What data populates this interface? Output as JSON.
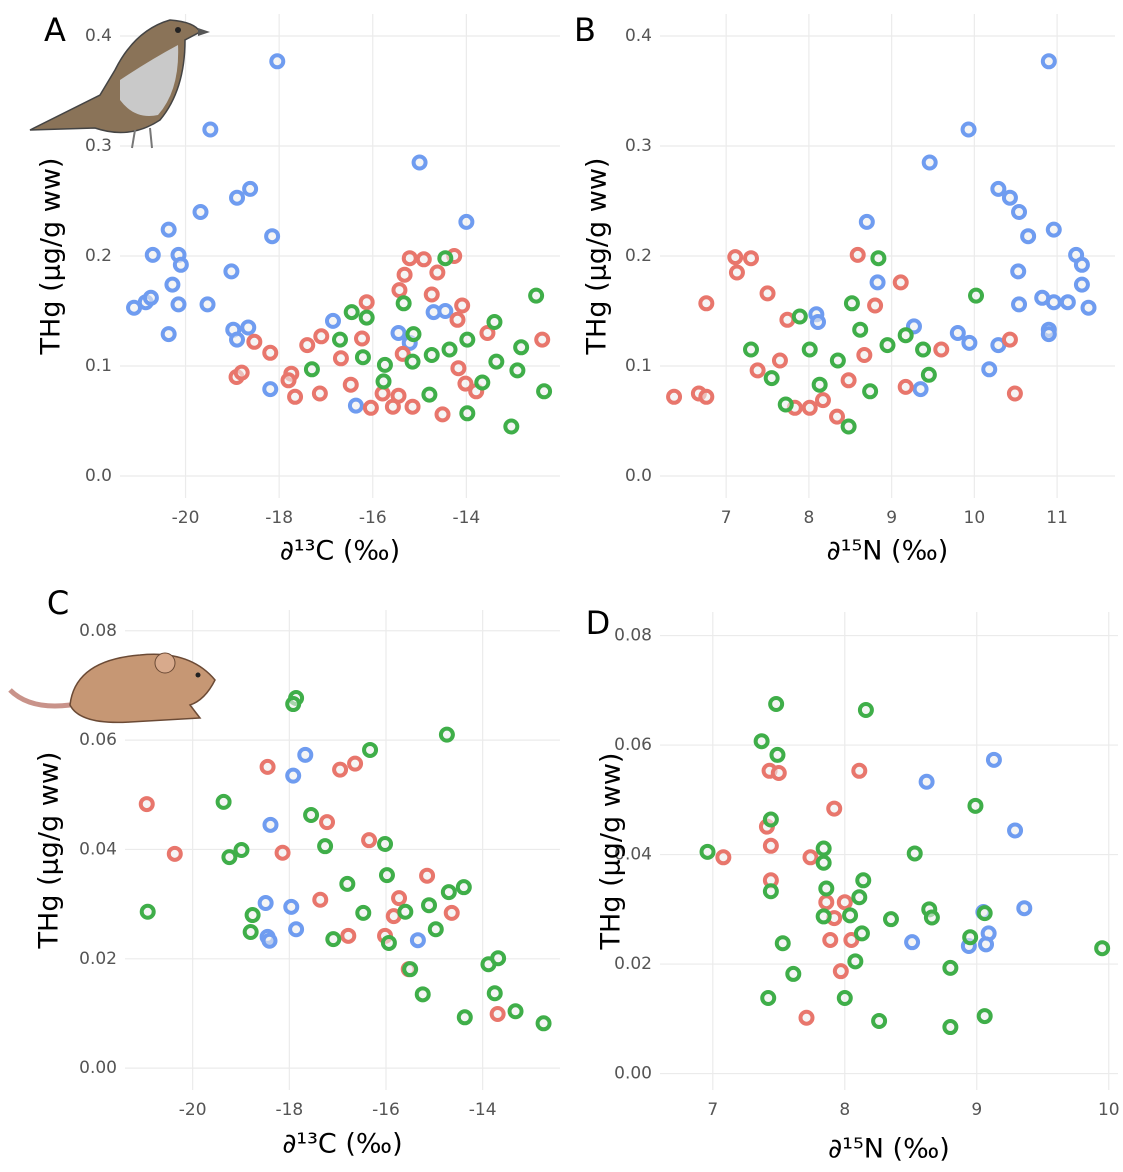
{
  "chart_data": [
    {
      "type": "scatter",
      "label": "A",
      "xlabel": "∂¹³C (‰)",
      "ylabel": "THg (μg/g ww)",
      "xlim": [
        -21.4,
        -12.0
      ],
      "ylim": [
        -0.02,
        0.42
      ],
      "xticks": [
        -20,
        -18,
        -16,
        -14
      ],
      "yticks": [
        {
          "value": 0,
          "label": "0.0"
        },
        0.1,
        0.2,
        0.3,
        0.4
      ],
      "grid": true,
      "series": [
        {
          "color": "#6f9cf0",
          "x": [
            -21.1,
            -20.85,
            -20.74,
            -20.7,
            -20.36,
            -20.36,
            -20.28,
            -20.15,
            -20.1,
            -20.15,
            -19.68,
            -19.53,
            -19.47,
            -19.02,
            -18.9,
            -18.62,
            -18.98,
            -18.9,
            -18.66,
            -18.19,
            -18.15,
            -18.04,
            -16.85,
            -16.36,
            -15.0,
            -15.45,
            -15.21,
            -14.7,
            -14.45,
            -14.0
          ],
          "y": [
            0.153,
            0.158,
            0.162,
            0.201,
            0.224,
            0.129,
            0.174,
            0.201,
            0.192,
            0.156,
            0.24,
            0.156,
            0.315,
            0.186,
            0.253,
            0.261,
            0.133,
            0.124,
            0.135,
            0.079,
            0.218,
            0.377,
            0.141,
            0.064,
            0.285,
            0.13,
            0.121,
            0.149,
            0.15,
            0.231
          ]
        },
        {
          "color": "#e8766c",
          "x": [
            -18.53,
            -18.91,
            -18.8,
            -18.19,
            -17.74,
            -17.8,
            -17.66,
            -17.4,
            -17.1,
            -17.13,
            -16.68,
            -16.47,
            -16.23,
            -16.13,
            -16.04,
            -15.79,
            -15.57,
            -15.45,
            -15.36,
            -15.32,
            -15.21,
            -15.15,
            -14.91,
            -14.74,
            -14.62,
            -14.51,
            -14.26,
            -14.19,
            -14.17,
            -14.09,
            -14.02,
            -13.79,
            -13.55,
            -12.38,
            -15.43
          ],
          "y": [
            0.122,
            0.09,
            0.094,
            0.112,
            0.093,
            0.087,
            0.072,
            0.119,
            0.127,
            0.075,
            0.107,
            0.083,
            0.125,
            0.158,
            0.062,
            0.075,
            0.063,
            0.073,
            0.111,
            0.183,
            0.198,
            0.063,
            0.197,
            0.165,
            0.185,
            0.056,
            0.2,
            0.142,
            0.098,
            0.155,
            0.084,
            0.077,
            0.13,
            0.124,
            0.169
          ]
        },
        {
          "color": "#3fae49",
          "x": [
            -17.3,
            -16.7,
            -16.45,
            -16.21,
            -16.13,
            -15.77,
            -15.34,
            -15.13,
            -15.15,
            -14.79,
            -14.74,
            -14.45,
            -14.36,
            -13.98,
            -13.98,
            -13.66,
            -13.4,
            -13.04,
            -12.91,
            -12.83,
            -12.51,
            -12.34,
            -13.36,
            -15.74
          ],
          "y": [
            0.097,
            0.124,
            0.149,
            0.108,
            0.144,
            0.086,
            0.157,
            0.129,
            0.104,
            0.074,
            0.11,
            0.198,
            0.115,
            0.124,
            0.057,
            0.085,
            0.14,
            0.045,
            0.096,
            0.117,
            0.164,
            0.077,
            0.104,
            0.101
          ]
        }
      ]
    },
    {
      "type": "scatter",
      "label": "B",
      "xlabel": "∂¹⁵N (‰)",
      "ylabel": "THg (μg/g ww)",
      "xlim": [
        6.2,
        11.7
      ],
      "ylim": [
        -0.02,
        0.42
      ],
      "xticks": [
        7,
        8,
        9,
        10,
        11
      ],
      "yticks": [
        {
          "value": 0,
          "label": "0.0"
        },
        0.1,
        0.2,
        0.3,
        0.4
      ],
      "grid": true,
      "series": [
        {
          "color": "#6f9cf0",
          "x": [
            10.9,
            9.93,
            9.46,
            10.29,
            10.43,
            10.54,
            10.65,
            10.96,
            11.23,
            11.3,
            10.53,
            11.3,
            10.54,
            10.82,
            10.96,
            11.13,
            11.38,
            10.9,
            10.9,
            9.94,
            10.29,
            10.18,
            8.7,
            8.83,
            9.35,
            9.8,
            9.27,
            8.09,
            8.11
          ],
          "y": [
            0.377,
            0.315,
            0.285,
            0.261,
            0.253,
            0.24,
            0.218,
            0.224,
            0.201,
            0.192,
            0.186,
            0.174,
            0.156,
            0.162,
            0.158,
            0.158,
            0.153,
            0.133,
            0.129,
            0.121,
            0.119,
            0.097,
            0.231,
            0.176,
            0.079,
            0.13,
            0.136,
            0.147,
            0.14
          ]
        },
        {
          "color": "#e8766c",
          "x": [
            6.37,
            6.76,
            7.11,
            7.13,
            7.3,
            6.67,
            6.76,
            7.5,
            7.38,
            7.74,
            8.59,
            8.8,
            9.11,
            9.6,
            10.43,
            10.49,
            8.34,
            8.01,
            7.83,
            8.17,
            8.67,
            8.48,
            9.17,
            7.65
          ],
          "y": [
            0.072,
            0.157,
            0.199,
            0.185,
            0.198,
            0.075,
            0.072,
            0.166,
            0.096,
            0.142,
            0.201,
            0.155,
            0.176,
            0.115,
            0.124,
            0.075,
            0.054,
            0.062,
            0.062,
            0.069,
            0.11,
            0.087,
            0.081,
            0.105
          ]
        },
        {
          "color": "#3fae49",
          "x": [
            7.3,
            7.55,
            7.72,
            7.89,
            8.13,
            8.48,
            8.52,
            8.84,
            8.74,
            9.45,
            10.02,
            9.17,
            9.38,
            8.35,
            8.95,
            8.01,
            8.62
          ],
          "y": [
            0.115,
            0.089,
            0.065,
            0.145,
            0.083,
            0.045,
            0.157,
            0.198,
            0.077,
            0.092,
            0.164,
            0.128,
            0.115,
            0.105,
            0.119,
            0.115,
            0.133
          ]
        }
      ]
    },
    {
      "type": "scatter",
      "label": "C",
      "xlabel": "∂¹³C (‰)",
      "ylabel": "THg (μg/g ww)",
      "xlim": [
        -21.4,
        -12.4
      ],
      "ylim": [
        -0.004,
        0.0838
      ],
      "xticks": [
        -20,
        -18,
        -16,
        -14
      ],
      "yticks": [
        {
          "value": 0,
          "label": "0.00"
        },
        0.02,
        0.04,
        0.06,
        0.08
      ],
      "grid": true,
      "series": [
        {
          "color": "#6f9cf0",
          "x": [
            -18.39,
            -18.49,
            -18.45,
            -18.41,
            -17.96,
            -17.86,
            -17.92,
            -17.67,
            -15.34
          ],
          "y": [
            0.0445,
            0.0302,
            0.024,
            0.0233,
            0.0295,
            0.0254,
            0.0535,
            0.0573,
            0.0234
          ]
        },
        {
          "color": "#e8766c",
          "x": [
            -20.95,
            -20.37,
            -18.45,
            -18.14,
            -17.36,
            -17.22,
            -16.95,
            -16.78,
            -16.64,
            -16.35,
            -16.02,
            -15.84,
            -15.73,
            -15.53,
            -15.15,
            -14.64,
            -13.69
          ],
          "y": [
            0.0483,
            0.0392,
            0.0551,
            0.0394,
            0.0308,
            0.045,
            0.0546,
            0.0242,
            0.0557,
            0.0417,
            0.0242,
            0.0278,
            0.0311,
            0.0181,
            0.0352,
            0.0284,
            0.0099
          ]
        },
        {
          "color": "#3fae49",
          "x": [
            -20.93,
            -19.36,
            -19.24,
            -18.99,
            -18.76,
            -18.8,
            -17.86,
            -17.92,
            -17.55,
            -17.26,
            -17.09,
            -16.8,
            -16.47,
            -16.33,
            -16.02,
            -15.98,
            -15.94,
            -15.6,
            -15.5,
            -15.24,
            -15.11,
            -14.97,
            -14.74,
            -14.7,
            -14.39,
            -14.37,
            -13.88,
            -13.68,
            -13.75,
            -13.32,
            -12.74
          ],
          "y": [
            0.0286,
            0.0487,
            0.0386,
            0.0399,
            0.028,
            0.0249,
            0.0677,
            0.0666,
            0.0463,
            0.0406,
            0.0236,
            0.0337,
            0.0284,
            0.0582,
            0.041,
            0.0353,
            0.0229,
            0.0286,
            0.0181,
            0.0135,
            0.0298,
            0.0254,
            0.061,
            0.0322,
            0.0331,
            0.0093,
            0.019,
            0.0201,
            0.0137,
            0.0104,
            0.0082
          ]
        }
      ]
    },
    {
      "type": "scatter",
      "label": "D",
      "xlabel": "∂¹⁵N (‰)",
      "ylabel": "THg (μg/g ww)",
      "xlim": [
        6.6,
        10.07
      ],
      "ylim": [
        -0.003,
        0.0843
      ],
      "xticks": [
        7,
        8,
        9,
        10
      ],
      "yticks": [
        {
          "value": 0,
          "label": "0.00"
        },
        0.02,
        0.04,
        0.06,
        0.08
      ],
      "grid": true,
      "series": [
        {
          "color": "#6f9cf0",
          "x": [
            8.62,
            9.13,
            9.29,
            9.36,
            9.05,
            9.09,
            9.07,
            8.94,
            8.51
          ],
          "y": [
            0.0533,
            0.0573,
            0.0444,
            0.0302,
            0.0295,
            0.0256,
            0.0236,
            0.0233,
            0.024
          ]
        },
        {
          "color": "#e8766c",
          "x": [
            7.08,
            7.41,
            7.43,
            7.5,
            7.44,
            7.44,
            7.74,
            7.71,
            7.86,
            7.89,
            7.92,
            7.92,
            7.97,
            8.0,
            8.05,
            8.11
          ],
          "y": [
            0.0395,
            0.0451,
            0.0553,
            0.0549,
            0.0416,
            0.0353,
            0.0395,
            0.0102,
            0.0313,
            0.0244,
            0.0484,
            0.0284,
            0.0187,
            0.0313,
            0.0244,
            0.0553
          ]
        },
        {
          "color": "#3fae49",
          "x": [
            6.96,
            7.37,
            7.48,
            7.49,
            7.44,
            7.44,
            7.42,
            7.53,
            7.61,
            7.84,
            7.84,
            7.86,
            7.84,
            8.0,
            8.04,
            8.08,
            8.11,
            8.13,
            8.14,
            8.16,
            8.26,
            8.35,
            8.53,
            8.64,
            8.66,
            8.8,
            8.8,
            8.95,
            8.99,
            9.06,
            9.06,
            9.95
          ],
          "y": [
            0.0405,
            0.0607,
            0.0675,
            0.0582,
            0.0464,
            0.0333,
            0.0138,
            0.0238,
            0.0182,
            0.0411,
            0.0385,
            0.0338,
            0.0287,
            0.0138,
            0.0289,
            0.0205,
            0.0322,
            0.0256,
            0.0353,
            0.0664,
            0.0096,
            0.0282,
            0.0402,
            0.03,
            0.0285,
            0.0193,
            0.0085,
            0.0249,
            0.0489,
            0.0105,
            0.0293,
            0.0229
          ]
        }
      ]
    }
  ]
}
